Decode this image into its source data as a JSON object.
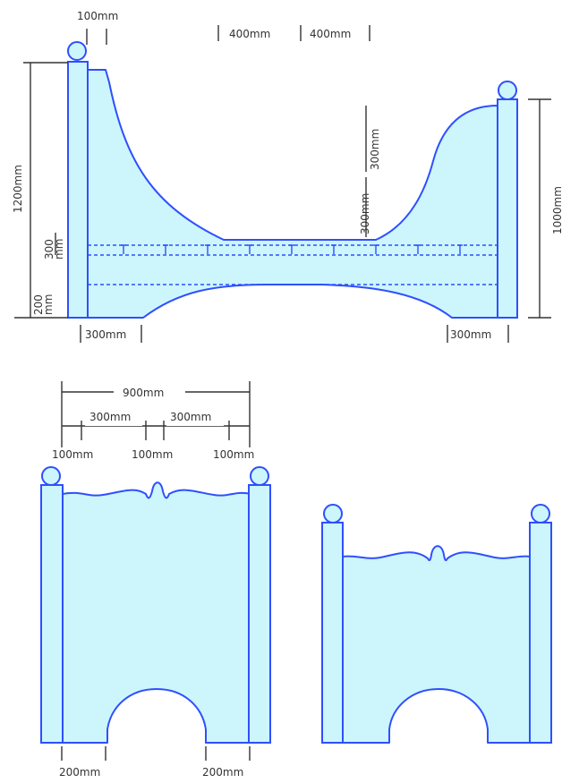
{
  "colors": {
    "outline": "#2f4fff",
    "fill": "#ccf6fb",
    "dimension_line": "#333333",
    "background": "#ffffff"
  },
  "side_view": {
    "labels": {
      "post_width": "100mm",
      "span_left": "400mm",
      "span_right": "400mm",
      "overall_height": "1200mm",
      "foot_height": "1000mm",
      "bottom_rail_height": "200\nmm",
      "mid_rail_height": "300\nmm",
      "rail_spacing_upper": "300mm",
      "rail_spacing_lower": "300mm",
      "leg_left": "300mm",
      "leg_right": "300mm"
    }
  },
  "end_view": {
    "labels": {
      "overall_width": "900mm",
      "inner_left": "300mm",
      "inner_right": "300mm",
      "post_left": "100mm",
      "center": "100mm",
      "post_right": "100mm",
      "arch_left": "200mm",
      "arch_right": "200mm"
    }
  }
}
